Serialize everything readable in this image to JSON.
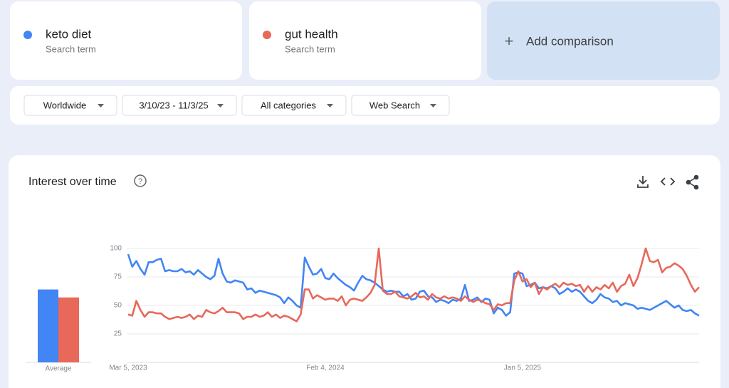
{
  "term_subtitle": "Search term",
  "add_comparison": "Add comparison",
  "filters": [
    "Worldwide",
    "3/10/23 - 11/3/25",
    "All categories",
    "Web Search"
  ],
  "chart_data": {
    "type": "line",
    "title": "Interest over time",
    "categories": [
      "Mar 5, 2023",
      null,
      null,
      null,
      null,
      null,
      null,
      null,
      null,
      null,
      null,
      null,
      null,
      null,
      null,
      null,
      null,
      null,
      null,
      null,
      null,
      null,
      null,
      null,
      null,
      null,
      null,
      null,
      null,
      null,
      null,
      null,
      null,
      null,
      null,
      null,
      null,
      null,
      null,
      null,
      null,
      null,
      null,
      null,
      null,
      null,
      null,
      null,
      "Feb 4, 2024",
      null,
      null,
      null,
      null,
      null,
      null,
      null,
      null,
      null,
      null,
      null,
      null,
      null,
      null,
      null,
      null,
      null,
      null,
      null,
      null,
      null,
      null,
      null,
      null,
      null,
      null,
      null,
      null,
      null,
      null,
      null,
      null,
      null,
      null,
      null,
      null,
      null,
      null,
      null,
      null,
      null,
      null,
      null,
      null,
      null,
      null,
      null,
      "Jan 5, 2025",
      null,
      null,
      null,
      null,
      null,
      null,
      null,
      null,
      null,
      null,
      null,
      null,
      null,
      null,
      null,
      null,
      null,
      null,
      null,
      null,
      null,
      null,
      null,
      null,
      null,
      null,
      null,
      null,
      null,
      null,
      null,
      null,
      null,
      null,
      null,
      null,
      null,
      null,
      null,
      null,
      null,
      null,
      null
    ],
    "series": [
      {
        "name": "keto diet",
        "color": "#4285f4",
        "values": [
          95,
          84,
          89,
          82,
          77,
          88,
          88,
          90,
          91,
          80,
          81,
          80,
          80,
          82,
          79,
          80,
          77,
          81,
          78,
          75,
          73,
          76,
          91,
          78,
          71,
          70,
          72,
          71,
          70,
          64,
          65,
          61,
          63,
          62,
          61,
          60,
          59,
          57,
          52,
          57,
          54,
          50,
          48,
          92,
          84,
          77,
          78,
          82,
          74,
          73,
          78,
          74,
          71,
          68,
          66,
          63,
          70,
          76,
          73,
          72,
          70,
          67,
          64,
          62,
          63,
          62,
          62,
          58,
          60,
          55,
          56,
          62,
          63,
          58,
          57,
          53,
          55,
          54,
          52,
          55,
          54,
          56,
          68,
          54,
          55,
          57,
          53,
          56,
          55,
          43,
          48,
          46,
          41,
          44,
          78,
          79,
          78,
          67,
          68,
          70,
          65,
          66,
          65,
          67,
          65,
          60,
          62,
          65,
          62,
          64,
          62,
          58,
          54,
          52,
          55,
          60,
          57,
          56,
          53,
          54,
          50,
          52,
          51,
          50,
          47,
          48,
          47,
          46,
          48,
          50,
          52,
          54,
          51,
          48,
          50,
          46,
          45,
          46,
          43,
          41
        ]
      },
      {
        "name": "gut health",
        "color": "#e8685a",
        "values": [
          42,
          41,
          54,
          46,
          40,
          44,
          44,
          43,
          43,
          40,
          38,
          39,
          40,
          39,
          40,
          42,
          38,
          41,
          40,
          46,
          44,
          43,
          45,
          48,
          44,
          44,
          44,
          43,
          38,
          40,
          40,
          42,
          40,
          41,
          44,
          40,
          42,
          39,
          41,
          40,
          38,
          36,
          42,
          64,
          64,
          56,
          59,
          57,
          55,
          56,
          56,
          54,
          58,
          50,
          55,
          56,
          55,
          54,
          57,
          61,
          68,
          100,
          63,
          60,
          60,
          62,
          58,
          57,
          56,
          58,
          61,
          57,
          58,
          55,
          60,
          57,
          56,
          58,
          56,
          57,
          56,
          54,
          58,
          55,
          53,
          55,
          54,
          52,
          51,
          46,
          51,
          50,
          52,
          52,
          72,
          80,
          71,
          73,
          66,
          70,
          60,
          66,
          64,
          67,
          69,
          66,
          70,
          68,
          69,
          67,
          68,
          62,
          67,
          62,
          66,
          64,
          68,
          65,
          70,
          62,
          67,
          69,
          77,
          67,
          74,
          86,
          100,
          89,
          88,
          90,
          79,
          83,
          84,
          87,
          85,
          82,
          76,
          68,
          62,
          66
        ]
      }
    ],
    "ylim": [
      0,
      100
    ],
    "yticks": [
      25,
      50,
      75,
      100
    ],
    "grid": true,
    "average": {
      "label": "Average",
      "values": [
        64,
        57
      ]
    }
  }
}
